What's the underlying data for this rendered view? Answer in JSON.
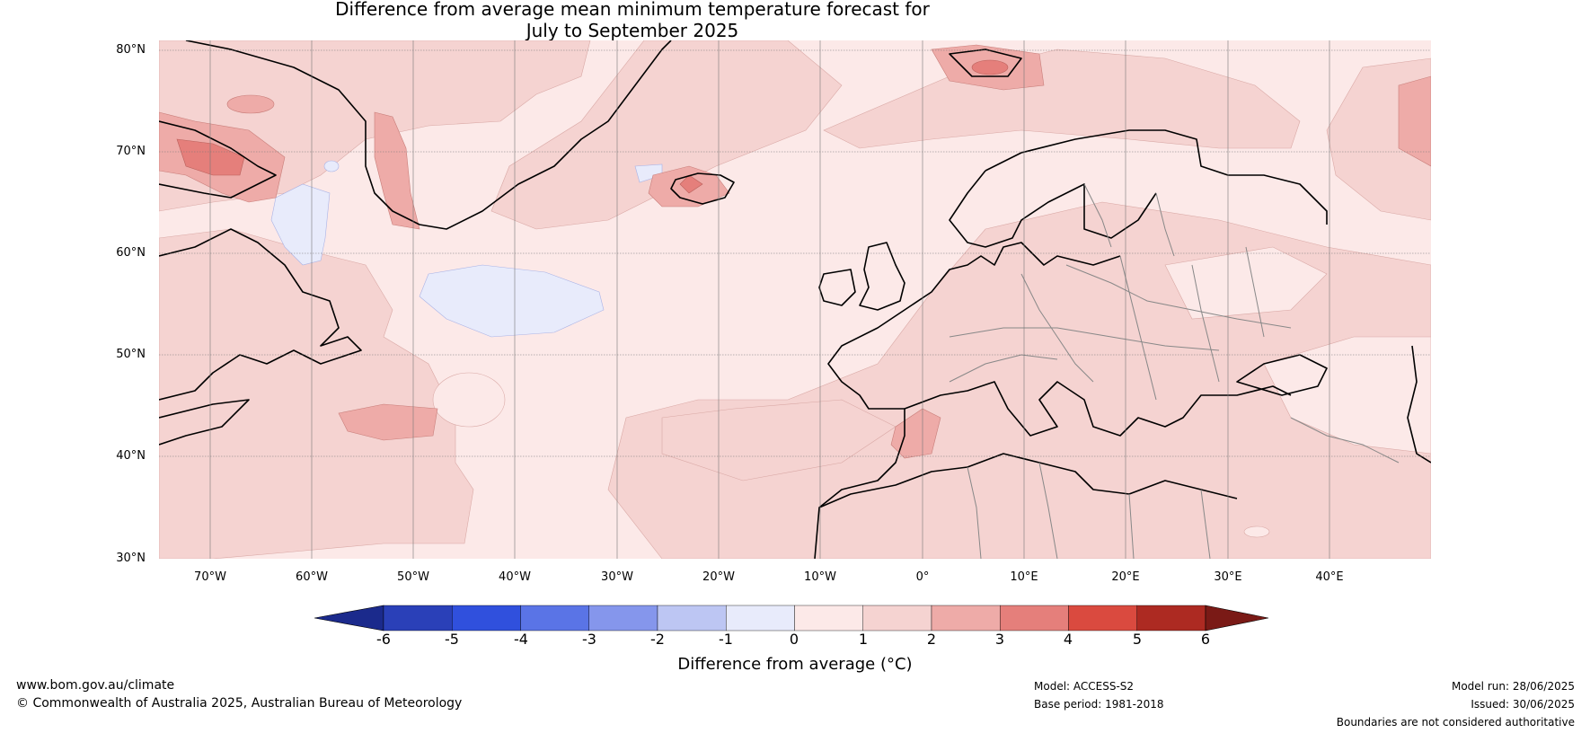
{
  "title": {
    "line1": "Difference from average mean minimum temperature forecast for",
    "line2": "July to September 2025"
  },
  "map": {
    "latitude_labels": [
      "80°N",
      "70°N",
      "60°N",
      "50°N",
      "40°N",
      "30°N"
    ],
    "longitude_labels": [
      "70°W",
      "60°W",
      "50°W",
      "40°W",
      "30°W",
      "20°W",
      "10°W",
      "0°",
      "10°E",
      "20°E",
      "30°E",
      "40°E"
    ],
    "extent": {
      "lon_min": -75,
      "lon_max": 50,
      "lat_min": 30,
      "lat_max": 81
    }
  },
  "colorbar": {
    "ticks": [
      "-6",
      "-5",
      "-4",
      "-3",
      "-2",
      "-1",
      "0",
      "1",
      "2",
      "3",
      "4",
      "5",
      "6"
    ],
    "colors": [
      "#1b2a8c",
      "#2a40b8",
      "#3050dd",
      "#5a74e6",
      "#8596ec",
      "#bdc6f3",
      "#e8ebfb",
      "#fce9e8",
      "#f5d3d1",
      "#eeaba8",
      "#e57f7b",
      "#da4a3f",
      "#ad2a22",
      "#7a1a16"
    ],
    "label": "Difference from average (°C)"
  },
  "footer": {
    "url": "www.bom.gov.au/climate",
    "copyright": "© Commonwealth of Australia 2025, Australian Bureau of Meteorology",
    "model": "Model: ACCESS-S2",
    "base_period": "Base period: 1981-2018",
    "model_run": "Model run: 28/06/2025",
    "issued": "Issued: 30/06/2025",
    "disclaimer": "Boundaries are not considered authoritative"
  }
}
